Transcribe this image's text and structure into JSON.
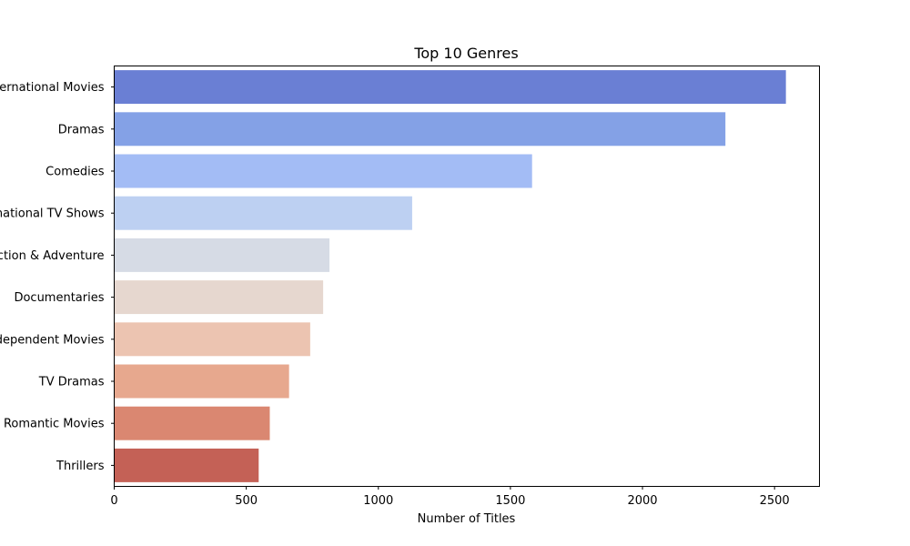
{
  "chart_data": {
    "type": "bar",
    "orientation": "horizontal",
    "title": "Top 10 Genres",
    "xlabel": "Number of Titles",
    "ylabel": "",
    "categories": [
      "International Movies",
      "Dramas",
      "Comedies",
      "International TV Shows",
      "Action & Adventure",
      "Documentaries",
      "Independent Movies",
      "TV Dramas",
      "Romantic Movies",
      "Thrillers"
    ],
    "values": [
      2543,
      2314,
      1582,
      1128,
      815,
      791,
      742,
      662,
      589,
      547
    ],
    "colors": [
      "#6a7fd4",
      "#84a1e6",
      "#a3bcf5",
      "#bdd0f2",
      "#d6dbe5",
      "#e6d7cf",
      "#ecc4b1",
      "#e7a88e",
      "#da8771",
      "#c46156"
    ],
    "xlim": [
      0,
      2670
    ],
    "xticks": [
      0,
      500,
      1000,
      1500,
      2000,
      2500
    ],
    "xtick_labels": [
      "0",
      "500",
      "1000",
      "1500",
      "2000",
      "2500"
    ],
    "grid": false,
    "legend": "none"
  }
}
